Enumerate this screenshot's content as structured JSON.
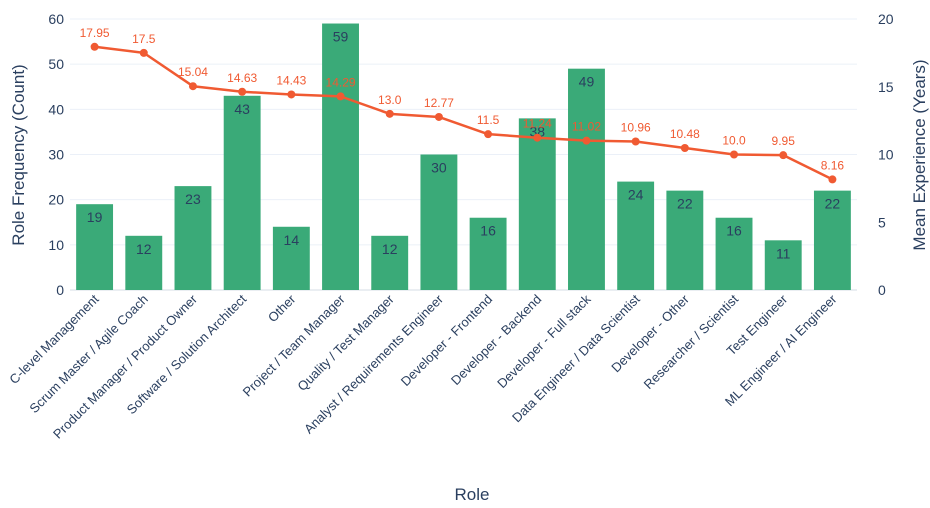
{
  "chart_data": {
    "type": "bar",
    "categories": [
      "C-level Management",
      "Scrum Master / Agile Coach",
      "Product Manager / Product Owner",
      "Software / Solution Architect",
      "Other",
      "Project / Team Manager",
      "Quality / Test Manager",
      "Analyst / Requirements Engineer",
      "Developer - Frontend",
      "Developer - Backend",
      "Developer - Full stack",
      "Data Engineer / Data Scientist",
      "Developer - Other",
      "Researcher / Scientist",
      "Test Engineer",
      "ML Engineer / AI Engineer"
    ],
    "series": [
      {
        "type": "bar",
        "axis": "left",
        "values": [
          19,
          12,
          23,
          43,
          14,
          59,
          12,
          30,
          16,
          38,
          49,
          24,
          22,
          16,
          11,
          22
        ],
        "labels": [
          "19",
          "12",
          "23",
          "43",
          "14",
          "59",
          "12",
          "30",
          "16",
          "38",
          "49",
          "24",
          "22",
          "16",
          "11",
          "22"
        ],
        "color": "#3aaa78"
      },
      {
        "type": "line",
        "axis": "right",
        "values": [
          17.95,
          17.5,
          15.04,
          14.63,
          14.43,
          14.29,
          13.0,
          12.77,
          11.5,
          11.24,
          11.02,
          10.96,
          10.48,
          10.0,
          9.95,
          8.16
        ],
        "labels": [
          "17.95",
          "17.5",
          "15.04",
          "14.63",
          "14.43",
          "14.29",
          "13.0",
          "12.77",
          "11.5",
          "11.24",
          "11.02",
          "10.96",
          "10.48",
          "10.0",
          "9.95",
          "8.16"
        ],
        "color": "#f05a32"
      }
    ],
    "xlabel": "Role",
    "ylabel": "Role Frequency (Count)",
    "y2label": "Mean Experience (Years)",
    "ylim": [
      0,
      60
    ],
    "y2lim": [
      0,
      20
    ],
    "yticks": [
      0,
      10,
      20,
      30,
      40,
      50,
      60
    ],
    "y2ticks": [
      0,
      5,
      10,
      15,
      20
    ],
    "grid": true,
    "legend": "none"
  }
}
